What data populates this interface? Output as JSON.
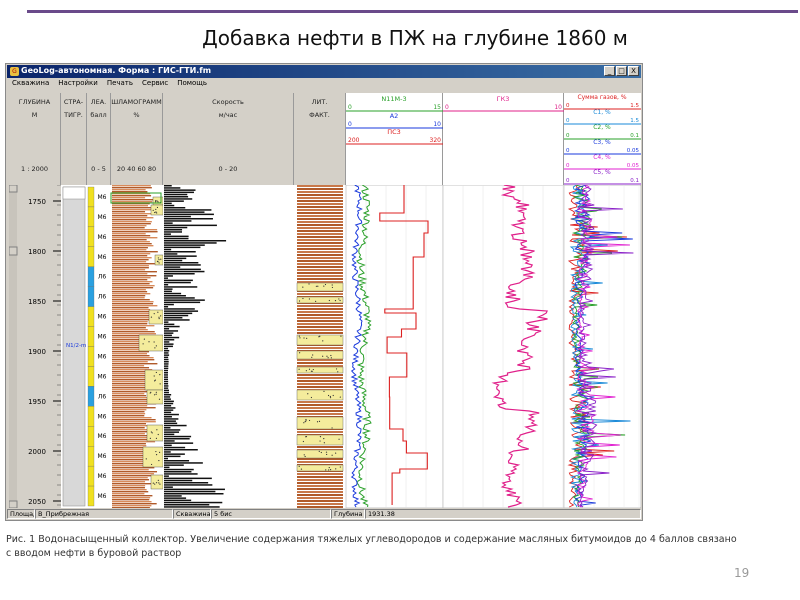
{
  "slide": {
    "title": "Добавка нефти в ПЖ на глубине 1860 м",
    "caption_line1": "Рис. 1 Водонасыщенный коллектор. Увеличение содержания тяжелых углеводородов и содержание масляных битумоидов до 4 баллов связано",
    "caption_line2": "с вводом нефти в буровой раствор",
    "page_number": "19"
  },
  "window": {
    "title": "GeoLog-автономная.  Форма : ГИС-ГТИ.fm",
    "buttons": [
      "_",
      "□",
      "X"
    ]
  },
  "menu": [
    "Скважина",
    "Настройки",
    "Печать",
    "Сервис",
    "Помощь"
  ],
  "tracks": {
    "depth": {
      "h1": "ГЛУБИНА",
      "h2": "М",
      "scale": "1 : 2000"
    },
    "strat": {
      "h1": "СТРА-",
      "h2": "ТИГР."
    },
    "lea": {
      "h1": "ЛЕА.",
      "h2": "балл",
      "range": "0 - 5"
    },
    "shlam": {
      "h1": "ШЛАМОГРАММ",
      "h2": "%",
      "ticks": "20 40 60 80"
    },
    "speed": {
      "h1": "Скорость",
      "h2": "м/час",
      "range": "0 - 20"
    },
    "lith": {
      "h1": "ЛИТ.",
      "h2": "ФАКТ."
    },
    "curves1": [
      {
        "name": "N11М-3",
        "min": "0",
        "max": "15",
        "color": "#2aa02a"
      },
      {
        "name": "А2",
        "min": "0",
        "max": "10",
        "color": "#1a3adc"
      },
      {
        "name": "ПС3",
        "min": "200",
        "max": "320",
        "color": "#dc2020"
      }
    ],
    "gk": {
      "name": "ГК3",
      "min": "0",
      "max": "10",
      "color": "#e0208a"
    },
    "gases": [
      {
        "name": "Сумма газов, %",
        "min": "0",
        "max": "1.5",
        "color": "#dc2020"
      },
      {
        "name": "С1, %",
        "min": "0",
        "max": "1.5",
        "color": "#1a8ad8"
      },
      {
        "name": "С2, %",
        "min": "0",
        "max": "0.1",
        "color": "#2aa02a"
      },
      {
        "name": "С3, %",
        "min": "0",
        "max": "0.05",
        "color": "#1a3adc"
      },
      {
        "name": "С4, %",
        "min": "0",
        "max": "0.05",
        "color": "#e020d0"
      },
      {
        "name": "С5, %",
        "min": "0",
        "max": "0.1",
        "color": "#8a20c8"
      }
    ]
  },
  "depth_ticks": [
    "1750",
    "1800",
    "1850",
    "1900",
    "1950",
    "2000",
    "2050"
  ],
  "strat_label": "N1/2-m",
  "lea_cells": [
    "М6",
    "М6",
    "М6",
    "М6",
    "Л6",
    "Л6",
    "М6",
    "М6",
    "М6",
    "М6",
    "Л6",
    "М6",
    "М6",
    "М6",
    "М6",
    "М6"
  ],
  "status": {
    "area_label": "Площадь",
    "area_value": "В_Прибрежная",
    "well_label": "Скважина",
    "well_value": "5 бис",
    "depth_label": "Глубина",
    "depth_value": "1931.38"
  }
}
